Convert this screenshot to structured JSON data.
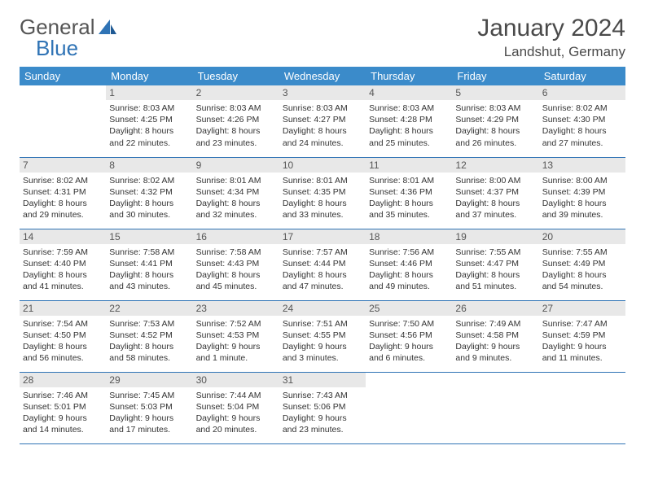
{
  "logo": {
    "text1": "General",
    "text2": "Blue"
  },
  "title": "January 2024",
  "location": "Landshut, Germany",
  "colors": {
    "header_bg": "#3b8bca",
    "header_text": "#ffffff",
    "daynum_bg": "#e8e8e8",
    "border": "#2f73b5",
    "logo_gray": "#555555",
    "logo_blue": "#2f73b5"
  },
  "columns": [
    "Sunday",
    "Monday",
    "Tuesday",
    "Wednesday",
    "Thursday",
    "Friday",
    "Saturday"
  ],
  "weeks": [
    [
      null,
      {
        "n": "1",
        "sr": "Sunrise: 8:03 AM",
        "ss": "Sunset: 4:25 PM",
        "d1": "Daylight: 8 hours",
        "d2": "and 22 minutes."
      },
      {
        "n": "2",
        "sr": "Sunrise: 8:03 AM",
        "ss": "Sunset: 4:26 PM",
        "d1": "Daylight: 8 hours",
        "d2": "and 23 minutes."
      },
      {
        "n": "3",
        "sr": "Sunrise: 8:03 AM",
        "ss": "Sunset: 4:27 PM",
        "d1": "Daylight: 8 hours",
        "d2": "and 24 minutes."
      },
      {
        "n": "4",
        "sr": "Sunrise: 8:03 AM",
        "ss": "Sunset: 4:28 PM",
        "d1": "Daylight: 8 hours",
        "d2": "and 25 minutes."
      },
      {
        "n": "5",
        "sr": "Sunrise: 8:03 AM",
        "ss": "Sunset: 4:29 PM",
        "d1": "Daylight: 8 hours",
        "d2": "and 26 minutes."
      },
      {
        "n": "6",
        "sr": "Sunrise: 8:02 AM",
        "ss": "Sunset: 4:30 PM",
        "d1": "Daylight: 8 hours",
        "d2": "and 27 minutes."
      }
    ],
    [
      {
        "n": "7",
        "sr": "Sunrise: 8:02 AM",
        "ss": "Sunset: 4:31 PM",
        "d1": "Daylight: 8 hours",
        "d2": "and 29 minutes."
      },
      {
        "n": "8",
        "sr": "Sunrise: 8:02 AM",
        "ss": "Sunset: 4:32 PM",
        "d1": "Daylight: 8 hours",
        "d2": "and 30 minutes."
      },
      {
        "n": "9",
        "sr": "Sunrise: 8:01 AM",
        "ss": "Sunset: 4:34 PM",
        "d1": "Daylight: 8 hours",
        "d2": "and 32 minutes."
      },
      {
        "n": "10",
        "sr": "Sunrise: 8:01 AM",
        "ss": "Sunset: 4:35 PM",
        "d1": "Daylight: 8 hours",
        "d2": "and 33 minutes."
      },
      {
        "n": "11",
        "sr": "Sunrise: 8:01 AM",
        "ss": "Sunset: 4:36 PM",
        "d1": "Daylight: 8 hours",
        "d2": "and 35 minutes."
      },
      {
        "n": "12",
        "sr": "Sunrise: 8:00 AM",
        "ss": "Sunset: 4:37 PM",
        "d1": "Daylight: 8 hours",
        "d2": "and 37 minutes."
      },
      {
        "n": "13",
        "sr": "Sunrise: 8:00 AM",
        "ss": "Sunset: 4:39 PM",
        "d1": "Daylight: 8 hours",
        "d2": "and 39 minutes."
      }
    ],
    [
      {
        "n": "14",
        "sr": "Sunrise: 7:59 AM",
        "ss": "Sunset: 4:40 PM",
        "d1": "Daylight: 8 hours",
        "d2": "and 41 minutes."
      },
      {
        "n": "15",
        "sr": "Sunrise: 7:58 AM",
        "ss": "Sunset: 4:41 PM",
        "d1": "Daylight: 8 hours",
        "d2": "and 43 minutes."
      },
      {
        "n": "16",
        "sr": "Sunrise: 7:58 AM",
        "ss": "Sunset: 4:43 PM",
        "d1": "Daylight: 8 hours",
        "d2": "and 45 minutes."
      },
      {
        "n": "17",
        "sr": "Sunrise: 7:57 AM",
        "ss": "Sunset: 4:44 PM",
        "d1": "Daylight: 8 hours",
        "d2": "and 47 minutes."
      },
      {
        "n": "18",
        "sr": "Sunrise: 7:56 AM",
        "ss": "Sunset: 4:46 PM",
        "d1": "Daylight: 8 hours",
        "d2": "and 49 minutes."
      },
      {
        "n": "19",
        "sr": "Sunrise: 7:55 AM",
        "ss": "Sunset: 4:47 PM",
        "d1": "Daylight: 8 hours",
        "d2": "and 51 minutes."
      },
      {
        "n": "20",
        "sr": "Sunrise: 7:55 AM",
        "ss": "Sunset: 4:49 PM",
        "d1": "Daylight: 8 hours",
        "d2": "and 54 minutes."
      }
    ],
    [
      {
        "n": "21",
        "sr": "Sunrise: 7:54 AM",
        "ss": "Sunset: 4:50 PM",
        "d1": "Daylight: 8 hours",
        "d2": "and 56 minutes."
      },
      {
        "n": "22",
        "sr": "Sunrise: 7:53 AM",
        "ss": "Sunset: 4:52 PM",
        "d1": "Daylight: 8 hours",
        "d2": "and 58 minutes."
      },
      {
        "n": "23",
        "sr": "Sunrise: 7:52 AM",
        "ss": "Sunset: 4:53 PM",
        "d1": "Daylight: 9 hours",
        "d2": "and 1 minute."
      },
      {
        "n": "24",
        "sr": "Sunrise: 7:51 AM",
        "ss": "Sunset: 4:55 PM",
        "d1": "Daylight: 9 hours",
        "d2": "and 3 minutes."
      },
      {
        "n": "25",
        "sr": "Sunrise: 7:50 AM",
        "ss": "Sunset: 4:56 PM",
        "d1": "Daylight: 9 hours",
        "d2": "and 6 minutes."
      },
      {
        "n": "26",
        "sr": "Sunrise: 7:49 AM",
        "ss": "Sunset: 4:58 PM",
        "d1": "Daylight: 9 hours",
        "d2": "and 9 minutes."
      },
      {
        "n": "27",
        "sr": "Sunrise: 7:47 AM",
        "ss": "Sunset: 4:59 PM",
        "d1": "Daylight: 9 hours",
        "d2": "and 11 minutes."
      }
    ],
    [
      {
        "n": "28",
        "sr": "Sunrise: 7:46 AM",
        "ss": "Sunset: 5:01 PM",
        "d1": "Daylight: 9 hours",
        "d2": "and 14 minutes."
      },
      {
        "n": "29",
        "sr": "Sunrise: 7:45 AM",
        "ss": "Sunset: 5:03 PM",
        "d1": "Daylight: 9 hours",
        "d2": "and 17 minutes."
      },
      {
        "n": "30",
        "sr": "Sunrise: 7:44 AM",
        "ss": "Sunset: 5:04 PM",
        "d1": "Daylight: 9 hours",
        "d2": "and 20 minutes."
      },
      {
        "n": "31",
        "sr": "Sunrise: 7:43 AM",
        "ss": "Sunset: 5:06 PM",
        "d1": "Daylight: 9 hours",
        "d2": "and 23 minutes."
      },
      null,
      null,
      null
    ]
  ]
}
